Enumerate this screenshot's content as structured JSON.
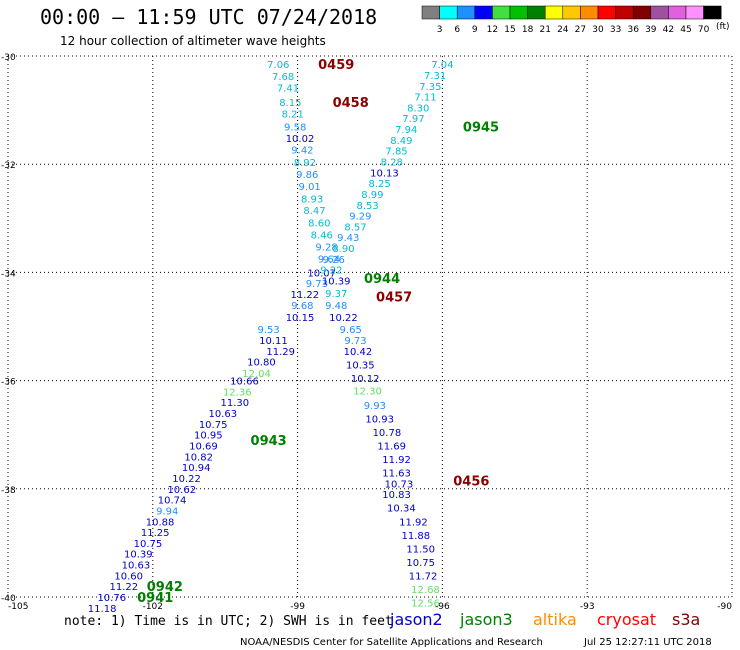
{
  "header": {
    "title": "00:00 – 11:59 UTC 07/24/2018",
    "subtitle": "12 hour collection of altimeter wave heights"
  },
  "color_scale": {
    "labels": [
      "3",
      "6",
      "9",
      "12",
      "15",
      "18",
      "21",
      "24",
      "27",
      "30",
      "33",
      "36",
      "39",
      "42",
      "45",
      "70"
    ],
    "colors": [
      "#808080",
      "#00ffff",
      "#1e90ff",
      "#0000ff",
      "#40e040",
      "#00c000",
      "#008000",
      "#ffff00",
      "#ffc800",
      "#ff8c00",
      "#ff0000",
      "#c00000",
      "#800000",
      "#a050a0",
      "#e060e0",
      "#ff90ff",
      "#000000"
    ],
    "unit": "(ft)"
  },
  "footer": {
    "note": "note: 1) Time is in UTC; 2) SWH is in feet",
    "credit": "NOAA/NESDIS Center for Satellite Applications and Research",
    "timestamp": "Jul 25 12:27:11 UTC 2018",
    "missions": [
      {
        "name": "jason2",
        "color": "#0000cc"
      },
      {
        "name": "jason3",
        "color": "#008000"
      },
      {
        "name": "altika",
        "color": "#ff8c00"
      },
      {
        "name": "cryosat",
        "color": "#ff0000"
      },
      {
        "name": "s3a",
        "color": "#800000"
      }
    ]
  },
  "chart_data": {
    "type": "scatter",
    "xlim": [
      -105,
      -90
    ],
    "ylim": [
      -40,
      -30
    ],
    "xticks": [
      -105,
      -102,
      -99,
      -96,
      -93,
      -90
    ],
    "xtick_labels": [
      "-105",
      "-102",
      "-99",
      "-96",
      "-93",
      "-90"
    ],
    "yticks": [
      -30,
      -32,
      -34,
      -36,
      -38,
      -40
    ],
    "ytick_labels": [
      "-30",
      "-32",
      "-34",
      "-36",
      "-38",
      "-40"
    ],
    "grid": true,
    "colors": {
      "c3": "#00bcd4",
      "c6": "#1e90ff",
      "c9": "#0000cd",
      "c12": "#60e060"
    },
    "tracks": [
      {
        "name": "track-a",
        "points": [
          {
            "x": -99.4,
            "y": -30.15,
            "v": "7.06",
            "c": "c3"
          },
          {
            "x": -99.3,
            "y": -30.37,
            "v": "7.68",
            "c": "c3"
          },
          {
            "x": -99.2,
            "y": -30.58,
            "v": "7.41",
            "c": "c3"
          },
          {
            "x": -99.15,
            "y": -30.85,
            "v": "8.15",
            "c": "c3"
          },
          {
            "x": -99.1,
            "y": -31.06,
            "v": "8.21",
            "c": "c3"
          },
          {
            "x": -99.05,
            "y": -31.3,
            "v": "9.58",
            "c": "c6"
          },
          {
            "x": -98.95,
            "y": -31.52,
            "v": "10.02",
            "c": "c9"
          },
          {
            "x": -98.9,
            "y": -31.73,
            "v": "9.42",
            "c": "c6"
          },
          {
            "x": -98.85,
            "y": -31.96,
            "v": "8.92",
            "c": "c3"
          },
          {
            "x": -98.8,
            "y": -32.18,
            "v": "9.86",
            "c": "c6"
          },
          {
            "x": -98.75,
            "y": -32.4,
            "v": "9.01",
            "c": "c6"
          },
          {
            "x": -98.7,
            "y": -32.63,
            "v": "8.93",
            "c": "c3"
          },
          {
            "x": -98.65,
            "y": -32.85,
            "v": "8.47",
            "c": "c3"
          },
          {
            "x": -98.55,
            "y": -33.08,
            "v": "8.60",
            "c": "c3"
          },
          {
            "x": -98.5,
            "y": -33.3,
            "v": "8.46",
            "c": "c3"
          },
          {
            "x": -98.4,
            "y": -33.52,
            "v": "9.28",
            "c": "c6"
          },
          {
            "x": -98.35,
            "y": -33.74,
            "v": "9.64",
            "c": "c6"
          },
          {
            "x": -98.5,
            "y": -34.0,
            "v": "10.07",
            "c": "c9"
          },
          {
            "x": -98.6,
            "y": -34.2,
            "v": "9.73",
            "c": "c6"
          },
          {
            "x": -98.85,
            "y": -34.4,
            "v": "11.22",
            "c": "c9"
          },
          {
            "x": -98.9,
            "y": -34.6,
            "v": "9.68",
            "c": "c6"
          },
          {
            "x": -98.95,
            "y": -34.82,
            "v": "10.15",
            "c": "c9"
          },
          {
            "x": -99.6,
            "y": -35.05,
            "v": "9.53",
            "c": "c6"
          },
          {
            "x": -99.5,
            "y": -35.25,
            "v": "10.11",
            "c": "c9"
          },
          {
            "x": -99.35,
            "y": -35.45,
            "v": "11.29",
            "c": "c9"
          },
          {
            "x": -99.75,
            "y": -35.65,
            "v": "10.80",
            "c": "c9"
          },
          {
            "x": -99.85,
            "y": -35.86,
            "v": "12.04",
            "c": "c12"
          },
          {
            "x": -100.1,
            "y": -36.0,
            "v": "10.66",
            "c": "c9"
          },
          {
            "x": -100.25,
            "y": -36.2,
            "v": "12.36",
            "c": "c12"
          },
          {
            "x": -100.3,
            "y": -36.4,
            "v": "11.30",
            "c": "c9"
          },
          {
            "x": -100.55,
            "y": -36.6,
            "v": "10.63",
            "c": "c9"
          },
          {
            "x": -100.75,
            "y": -36.8,
            "v": "10.75",
            "c": "c9"
          },
          {
            "x": -100.85,
            "y": -37.0,
            "v": "10.95",
            "c": "c9"
          },
          {
            "x": -100.95,
            "y": -37.2,
            "v": "10.69",
            "c": "c9"
          },
          {
            "x": -101.05,
            "y": -37.4,
            "v": "10.82",
            "c": "c9"
          },
          {
            "x": -101.1,
            "y": -37.6,
            "v": "10.94",
            "c": "c9"
          },
          {
            "x": -101.3,
            "y": -37.8,
            "v": "10.22",
            "c": "c9"
          },
          {
            "x": -101.4,
            "y": -38.0,
            "v": "10.62",
            "c": "c9"
          },
          {
            "x": -101.6,
            "y": -38.2,
            "v": "10.74",
            "c": "c9"
          },
          {
            "x": -101.7,
            "y": -38.4,
            "v": "9.94",
            "c": "c6"
          },
          {
            "x": -101.85,
            "y": -38.6,
            "v": "10.88",
            "c": "c9"
          },
          {
            "x": -101.95,
            "y": -38.8,
            "v": "11.25",
            "c": "c9"
          },
          {
            "x": -102.1,
            "y": -39.0,
            "v": "10.75",
            "c": "c9"
          },
          {
            "x": -102.3,
            "y": -39.2,
            "v": "10.39",
            "c": "c9"
          },
          {
            "x": -102.35,
            "y": -39.4,
            "v": "10.63",
            "c": "c9"
          },
          {
            "x": -102.5,
            "y": -39.6,
            "v": "10.60",
            "c": "c9"
          },
          {
            "x": -102.6,
            "y": -39.8,
            "v": "11.22",
            "c": "c9"
          },
          {
            "x": -102.85,
            "y": -40.0,
            "v": "10.76",
            "c": "c9"
          },
          {
            "x": -103.05,
            "y": -40.2,
            "v": "11.18",
            "c": "c9"
          }
        ]
      },
      {
        "name": "track-b",
        "points": [
          {
            "x": -96.0,
            "y": -30.15,
            "v": "7.04",
            "c": "c3"
          },
          {
            "x": -96.15,
            "y": -30.35,
            "v": "7.31",
            "c": "c3"
          },
          {
            "x": -96.25,
            "y": -30.55,
            "v": "7.35",
            "c": "c3"
          },
          {
            "x": -96.35,
            "y": -30.75,
            "v": "7.11",
            "c": "c3"
          },
          {
            "x": -96.5,
            "y": -30.95,
            "v": "8.30",
            "c": "c3"
          },
          {
            "x": -96.6,
            "y": -31.15,
            "v": "7.97",
            "c": "c3"
          },
          {
            "x": -96.75,
            "y": -31.35,
            "v": "7.94",
            "c": "c3"
          },
          {
            "x": -96.85,
            "y": -31.55,
            "v": "8.49",
            "c": "c3"
          },
          {
            "x": -96.95,
            "y": -31.75,
            "v": "7.85",
            "c": "c3"
          },
          {
            "x": -97.05,
            "y": -31.95,
            "v": "8.28",
            "c": "c3"
          },
          {
            "x": -97.2,
            "y": -32.15,
            "v": "10.13",
            "c": "c9"
          },
          {
            "x": -97.3,
            "y": -32.35,
            "v": "8.25",
            "c": "c3"
          },
          {
            "x": -97.45,
            "y": -32.55,
            "v": "8.99",
            "c": "c3"
          },
          {
            "x": -97.55,
            "y": -32.75,
            "v": "8.53",
            "c": "c3"
          },
          {
            "x": -97.7,
            "y": -32.95,
            "v": "9.29",
            "c": "c6"
          },
          {
            "x": -97.8,
            "y": -33.15,
            "v": "8.57",
            "c": "c3"
          },
          {
            "x": -97.95,
            "y": -33.35,
            "v": "9.43",
            "c": "c6"
          },
          {
            "x": -98.05,
            "y": -33.55,
            "v": "8.90",
            "c": "c3"
          },
          {
            "x": -98.25,
            "y": -33.75,
            "v": "9.26",
            "c": "c6"
          },
          {
            "x": -98.3,
            "y": -33.95,
            "v": "9.22",
            "c": "c3"
          },
          {
            "x": -98.2,
            "y": -34.15,
            "v": "10.39",
            "c": "c9"
          },
          {
            "x": -98.2,
            "y": -34.38,
            "v": "9.37",
            "c": "c3"
          },
          {
            "x": -98.2,
            "y": -34.6,
            "v": "9.48",
            "c": "c6"
          },
          {
            "x": -98.05,
            "y": -34.82,
            "v": "10.22",
            "c": "c9"
          },
          {
            "x": -97.9,
            "y": -35.05,
            "v": "9.65",
            "c": "c6"
          },
          {
            "x": -97.8,
            "y": -35.25,
            "v": "9.73",
            "c": "c6"
          },
          {
            "x": -97.75,
            "y": -35.45,
            "v": "10.42",
            "c": "c9"
          },
          {
            "x": -97.7,
            "y": -35.7,
            "v": "10.35",
            "c": "c9"
          },
          {
            "x": -97.6,
            "y": -35.95,
            "v": "10.12",
            "c": "c9"
          },
          {
            "x": -97.55,
            "y": -36.18,
            "v": "12.30",
            "c": "c12"
          },
          {
            "x": -97.4,
            "y": -36.45,
            "v": "9.93",
            "c": "c6"
          },
          {
            "x": -97.3,
            "y": -36.7,
            "v": "10.93",
            "c": "c9"
          },
          {
            "x": -97.15,
            "y": -36.95,
            "v": "10.78",
            "c": "c9"
          },
          {
            "x": -97.05,
            "y": -37.2,
            "v": "11.69",
            "c": "c9"
          },
          {
            "x": -96.95,
            "y": -37.45,
            "v": "11.92",
            "c": "c9"
          },
          {
            "x": -96.95,
            "y": -37.7,
            "v": "11.63",
            "c": "c9"
          },
          {
            "x": -96.9,
            "y": -37.9,
            "v": "10.73",
            "c": "c9"
          },
          {
            "x": -96.95,
            "y": -38.1,
            "v": "10.83",
            "c": "c9"
          },
          {
            "x": -96.85,
            "y": -38.35,
            "v": "10.34",
            "c": "c9"
          },
          {
            "x": -96.6,
            "y": -38.6,
            "v": "11.92",
            "c": "c9"
          },
          {
            "x": -96.55,
            "y": -38.85,
            "v": "11.88",
            "c": "c9"
          },
          {
            "x": -96.45,
            "y": -39.1,
            "v": "11.50",
            "c": "c9"
          },
          {
            "x": -96.45,
            "y": -39.35,
            "v": "10.75",
            "c": "c9"
          },
          {
            "x": -96.4,
            "y": -39.6,
            "v": "11.72",
            "c": "c9"
          },
          {
            "x": -96.35,
            "y": -39.85,
            "v": "12.68",
            "c": "c12"
          },
          {
            "x": -96.35,
            "y": -40.1,
            "v": "12.56",
            "c": "c12"
          }
        ]
      }
    ],
    "time_labels": [
      {
        "x": -98.2,
        "y": -30.15,
        "v": "0459",
        "color": "#8b0000"
      },
      {
        "x": -97.9,
        "y": -30.85,
        "v": "0458",
        "color": "#8b0000"
      },
      {
        "x": -95.2,
        "y": -31.3,
        "v": "0945",
        "color": "#008000"
      },
      {
        "x": -97.25,
        "y": -34.1,
        "v": "0944",
        "color": "#008000"
      },
      {
        "x": -97.0,
        "y": -34.45,
        "v": "0457",
        "color": "#8b0000"
      },
      {
        "x": -99.6,
        "y": -37.1,
        "v": "0943",
        "color": "#008000"
      },
      {
        "x": -95.4,
        "y": -37.85,
        "v": "0456",
        "color": "#8b0000"
      },
      {
        "x": -101.75,
        "y": -39.8,
        "v": "0942",
        "color": "#008000"
      },
      {
        "x": -101.95,
        "y": -40.0,
        "v": "0941",
        "color": "#008000"
      }
    ]
  }
}
